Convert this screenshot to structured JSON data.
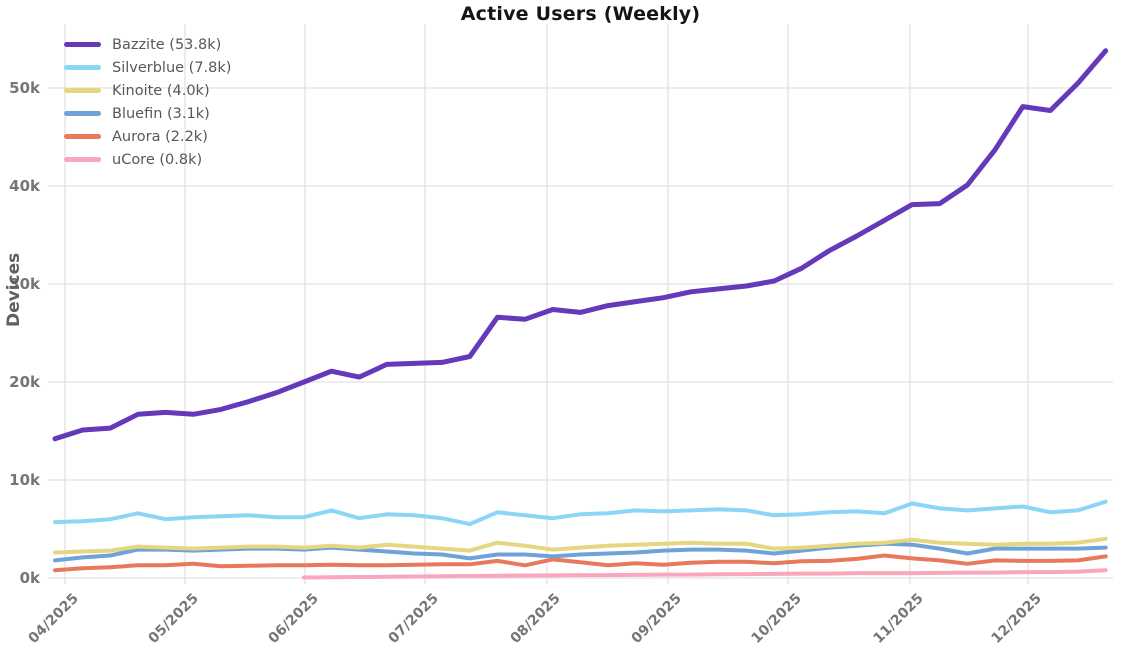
{
  "chart": {
    "title": "Active Users (Weekly)",
    "y_axis_title": "Devices"
  },
  "chart_data": {
    "type": "line",
    "title": "Active Users (Weekly)",
    "xlabel": "",
    "ylabel": "Devices",
    "point_interval": "weekly",
    "y_unit": "thousands of devices",
    "ylim": [
      0,
      55
    ],
    "grid": true,
    "legend_position": "upper-left",
    "background": "#ffffff",
    "gridline_color": "#e2e2e2",
    "tick_label_color": "#767676",
    "y_ticks": [
      {
        "value": 0,
        "label": "0k"
      },
      {
        "value": 10,
        "label": "10k"
      },
      {
        "value": 20,
        "label": "20k"
      },
      {
        "value": 30,
        "label": "30k"
      },
      {
        "value": 40,
        "label": "40k"
      },
      {
        "value": 50,
        "label": "50k"
      }
    ],
    "x_ticks": [
      {
        "pos": 0.36,
        "label": "04/2025"
      },
      {
        "pos": 4.7,
        "label": "05/2025"
      },
      {
        "pos": 9.04,
        "label": "06/2025"
      },
      {
        "pos": 13.38,
        "label": "07/2025"
      },
      {
        "pos": 17.79,
        "label": "08/2025"
      },
      {
        "pos": 22.17,
        "label": "09/2025"
      },
      {
        "pos": 26.51,
        "label": "10/2025"
      },
      {
        "pos": 30.92,
        "label": "11/2025"
      },
      {
        "pos": 35.19,
        "label": "12/2025"
      }
    ],
    "series": [
      {
        "name": "Bazzite",
        "legend_label": "Bazzite (53.8k)",
        "latest_value_k": 53.8,
        "color": "#6439BA",
        "linewidth": 5,
        "values": [
          14.2,
          15.1,
          15.3,
          16.7,
          16.9,
          16.7,
          17.2,
          18.0,
          18.9,
          20.0,
          21.1,
          20.5,
          21.8,
          21.9,
          22.0,
          22.6,
          26.6,
          26.4,
          27.4,
          27.1,
          27.8,
          28.2,
          28.6,
          29.2,
          29.5,
          29.8,
          30.3,
          31.6,
          33.4,
          34.9,
          36.5,
          38.1,
          38.2,
          40.1,
          43.7,
          48.1,
          47.7,
          50.5,
          53.8
        ]
      },
      {
        "name": "Silverblue",
        "legend_label": "Silverblue (7.8k)",
        "latest_value_k": 7.8,
        "color": "#8DD5F7",
        "linewidth": 4,
        "values": [
          5.7,
          5.8,
          6.0,
          6.6,
          6.0,
          6.2,
          6.3,
          6.4,
          6.2,
          6.2,
          6.9,
          6.1,
          6.5,
          6.4,
          6.1,
          5.5,
          6.7,
          6.4,
          6.1,
          6.5,
          6.6,
          6.9,
          6.8,
          6.9,
          7.0,
          6.9,
          6.4,
          6.5,
          6.7,
          6.8,
          6.6,
          7.6,
          7.1,
          6.9,
          7.1,
          7.3,
          6.7,
          6.9,
          7.8
        ]
      },
      {
        "name": "Kinoite",
        "legend_label": "Kinoite (4.0k)",
        "latest_value_k": 4.0,
        "color": "#E6D67F",
        "linewidth": 4,
        "values": [
          2.6,
          2.7,
          2.8,
          3.2,
          3.1,
          3.0,
          3.1,
          3.2,
          3.2,
          3.1,
          3.3,
          3.1,
          3.4,
          3.2,
          3.0,
          2.8,
          3.6,
          3.3,
          2.9,
          3.1,
          3.3,
          3.4,
          3.5,
          3.6,
          3.5,
          3.5,
          3.0,
          3.1,
          3.3,
          3.5,
          3.6,
          3.9,
          3.6,
          3.5,
          3.4,
          3.5,
          3.5,
          3.6,
          4.0
        ]
      },
      {
        "name": "Bluefin",
        "legend_label": "Bluefin (3.1k)",
        "latest_value_k": 3.1,
        "color": "#6FA3D8",
        "linewidth": 4,
        "values": [
          1.8,
          2.1,
          2.3,
          2.9,
          2.9,
          2.8,
          2.9,
          3.0,
          3.0,
          2.9,
          3.1,
          2.9,
          2.7,
          2.5,
          2.4,
          2.0,
          2.4,
          2.4,
          2.2,
          2.4,
          2.5,
          2.6,
          2.8,
          2.9,
          2.9,
          2.8,
          2.5,
          2.8,
          3.1,
          3.3,
          3.5,
          3.4,
          3.0,
          2.5,
          3.0,
          3.0,
          3.0,
          3.0,
          3.1
        ]
      },
      {
        "name": "Aurora",
        "legend_label": "Aurora (2.2k)",
        "latest_value_k": 2.2,
        "color": "#E8795A",
        "linewidth": 4,
        "values": [
          0.8,
          1.0,
          1.1,
          1.3,
          1.3,
          1.45,
          1.2,
          1.25,
          1.3,
          1.3,
          1.35,
          1.3,
          1.3,
          1.35,
          1.4,
          1.4,
          1.75,
          1.3,
          1.9,
          1.6,
          1.3,
          1.5,
          1.35,
          1.55,
          1.65,
          1.65,
          1.5,
          1.7,
          1.75,
          1.95,
          2.3,
          2.0,
          1.8,
          1.45,
          1.8,
          1.75,
          1.75,
          1.8,
          2.2
        ]
      },
      {
        "name": "uCore",
        "legend_label": "uCore (0.8k)",
        "latest_value_k": 0.8,
        "color": "#F9A7BB",
        "linewidth": 4,
        "values": [
          null,
          null,
          null,
          null,
          null,
          null,
          null,
          null,
          null,
          0.05,
          0.08,
          0.1,
          0.12,
          0.15,
          0.18,
          0.2,
          0.22,
          0.25,
          0.27,
          0.3,
          0.3,
          0.32,
          0.35,
          0.35,
          0.38,
          0.4,
          0.42,
          0.45,
          0.45,
          0.5,
          0.5,
          0.5,
          0.52,
          0.55,
          0.55,
          0.6,
          0.6,
          0.65,
          0.8
        ]
      }
    ]
  }
}
